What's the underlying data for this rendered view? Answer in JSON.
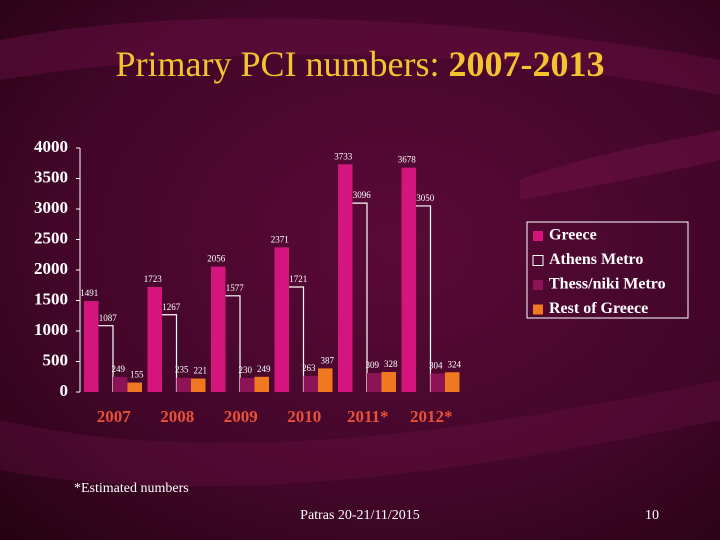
{
  "chart_data": {
    "type": "bar",
    "title": "Primary PCI numbers:",
    "title_years": "2007-2013",
    "categories": [
      "2007",
      "2008",
      "2009",
      "2010",
      "2011*",
      "2012*"
    ],
    "category_color": "#e8503a",
    "series": [
      {
        "name": "Greece",
        "color": "#d4157e",
        "values": [
          1491,
          1723,
          2056,
          2371,
          3733,
          3678
        ]
      },
      {
        "name": "Athens Metro",
        "color": "#ffffff",
        "outline": true,
        "values": [
          1087,
          1267,
          1577,
          1721,
          3096,
          3050
        ]
      },
      {
        "name": "Thess/niki Metro",
        "color": "#8c1456",
        "values": [
          249,
          235,
          230,
          263,
          309,
          304
        ]
      },
      {
        "name": "Rest of Greece",
        "color": "#f07820",
        "values": [
          155,
          221,
          249,
          387,
          328,
          324
        ]
      }
    ],
    "ylim": [
      0,
      4000
    ],
    "yticks": [
      0,
      500,
      1000,
      1500,
      2000,
      2500,
      3000,
      3500,
      4000
    ],
    "legend": "right",
    "footnote": "*Estimated numbers",
    "footer": "Patras 20-21/11/2015",
    "page_number": "10"
  }
}
